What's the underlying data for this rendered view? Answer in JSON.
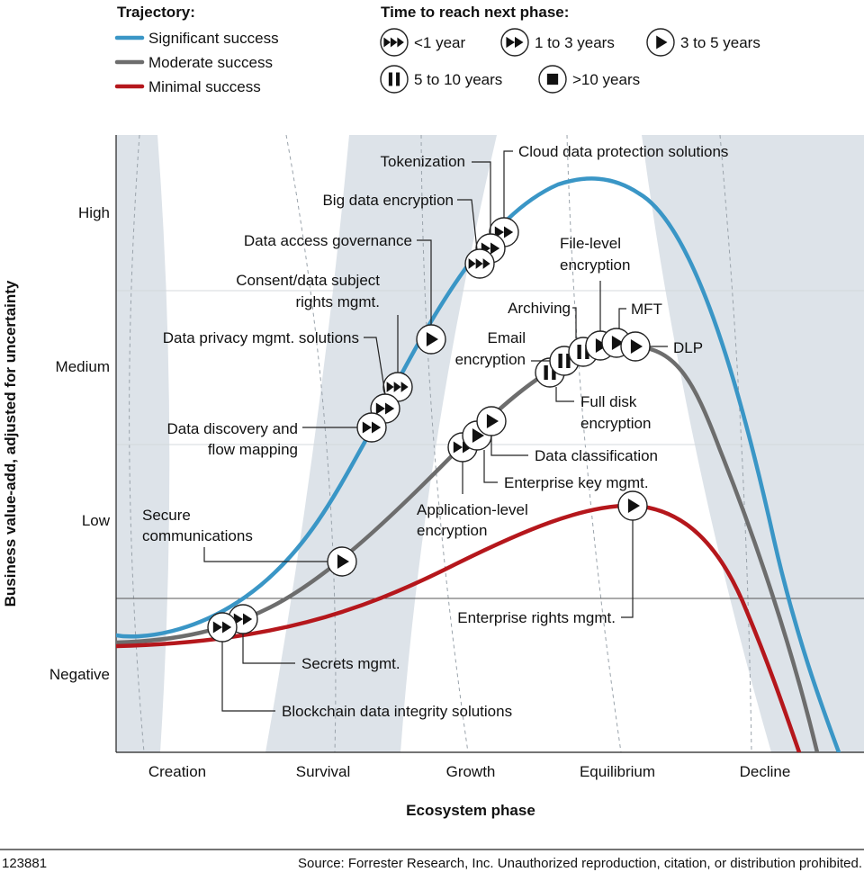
{
  "legend": {
    "trajectory_title": "Trajectory:",
    "time_title": "Time to reach next phase:",
    "trajectories": [
      {
        "key": "significant",
        "label": "Significant success",
        "color": "#3a96c6"
      },
      {
        "key": "moderate",
        "label": "Moderate success",
        "color": "#6d6d6d"
      },
      {
        "key": "minimal",
        "label": "Minimal success",
        "color": "#b5171c"
      }
    ],
    "times": [
      {
        "icon": "ff3",
        "label": "<1 year"
      },
      {
        "icon": "ff2",
        "label": "1 to 3 years"
      },
      {
        "icon": "play",
        "label": "3 to 5 years"
      },
      {
        "icon": "pause",
        "label": "5 to 10 years"
      },
      {
        "icon": "stop",
        "label": ">10 years"
      }
    ]
  },
  "axes": {
    "ylabel": "Business value-add, adjusted for uncertainty",
    "xlabel": "Ecosystem phase",
    "yticks": [
      "High",
      "Medium",
      "Low",
      "Negative"
    ],
    "phases": [
      "Creation",
      "Survival",
      "Growth",
      "Equilibrium",
      "Decline"
    ]
  },
  "footer": {
    "id": "123881",
    "source": "Source: Forrester Research, Inc. Unauthorized reproduction, citation, or distribution prohibited."
  },
  "chart_data": {
    "type": "line",
    "x_categories": [
      "Creation",
      "Survival",
      "Growth",
      "Equilibrium",
      "Decline"
    ],
    "y_categories": [
      "Negative",
      "Low",
      "Medium",
      "High"
    ],
    "series": [
      {
        "name": "Significant success",
        "color": "#3a96c6"
      },
      {
        "name": "Moderate success",
        "color": "#6d6d6d"
      },
      {
        "name": "Minimal success",
        "color": "#b5171c"
      }
    ],
    "technologies": [
      {
        "label": [
          "Cloud data protection solutions"
        ],
        "series": "Significant success",
        "icon": "ff2"
      },
      {
        "label": [
          "Tokenization"
        ],
        "series": "Significant success",
        "icon": "ff2"
      },
      {
        "label": [
          "Big data encryption"
        ],
        "series": "Significant success",
        "icon": "ff3"
      },
      {
        "label": [
          "Data access governance"
        ],
        "series": "Significant success",
        "icon": "play"
      },
      {
        "label": [
          "Consent/data subject",
          "rights mgmt."
        ],
        "series": "Significant success",
        "icon": "ff3"
      },
      {
        "label": [
          "Data privacy mgmt. solutions"
        ],
        "series": "Significant success",
        "icon": "ff2"
      },
      {
        "label": [
          "Data discovery and",
          "flow mapping"
        ],
        "series": "Significant success",
        "icon": "ff2"
      },
      {
        "label": [
          "Secure",
          "communications"
        ],
        "series": "Moderate success",
        "icon": "play"
      },
      {
        "label": [
          "Secrets mgmt."
        ],
        "series": "Moderate success",
        "icon": "ff2"
      },
      {
        "label": [
          "Blockchain data integrity solutions"
        ],
        "series": "Minimal success",
        "icon": "ff2"
      },
      {
        "label": [
          "Application-level",
          "encryption"
        ],
        "series": "Moderate success",
        "icon": "ff2"
      },
      {
        "label": [
          "Enterprise key mgmt."
        ],
        "series": "Moderate success",
        "icon": "play"
      },
      {
        "label": [
          "Data classification"
        ],
        "series": "Moderate success",
        "icon": "play"
      },
      {
        "label": [
          "Full disk",
          "encryption"
        ],
        "series": "Moderate success",
        "icon": "pause"
      },
      {
        "label": [
          "Email",
          "encryption"
        ],
        "series": "Moderate success",
        "icon": "pause"
      },
      {
        "label": [
          "Archiving"
        ],
        "series": "Moderate success",
        "icon": "pause"
      },
      {
        "label": [
          "File-level",
          "encryption"
        ],
        "series": "Moderate success",
        "icon": "play"
      },
      {
        "label": [
          "MFT"
        ],
        "series": "Moderate success",
        "icon": "play"
      },
      {
        "label": [
          "DLP"
        ],
        "series": "Moderate success",
        "icon": "play"
      },
      {
        "label": [
          "Enterprise rights mgmt."
        ],
        "series": "Minimal success",
        "icon": "play"
      }
    ]
  }
}
